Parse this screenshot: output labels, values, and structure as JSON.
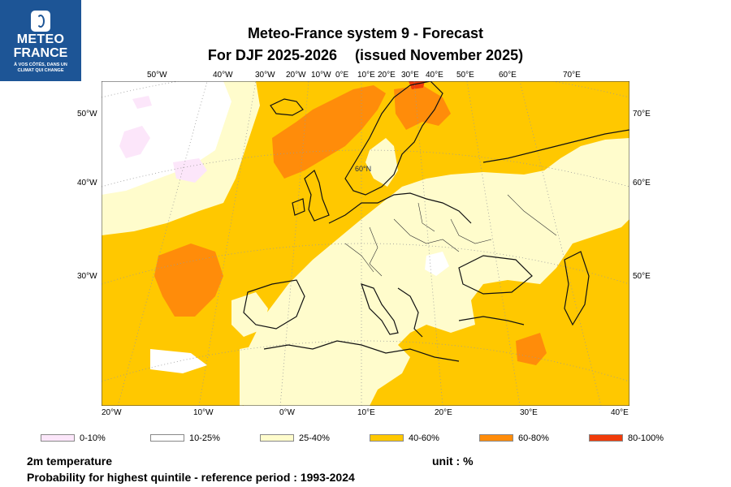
{
  "logo": {
    "line1": "METEO",
    "line2": "FRANCE",
    "tagline": "À VOS CÔTÉS, DANS UN CLIMAT QUI CHANGE"
  },
  "title": {
    "line1": "Meteo-France system 9  -  Forecast",
    "line2a": "For DJF 2025-2026",
    "line2b": "(issued November 2025)"
  },
  "top_lon_labels": [
    "50°W",
    "40°W",
    "30°W",
    "20°W",
    "10°W",
    "0°E",
    "10°E",
    "20°E",
    "30°E",
    "40°E",
    "50°E",
    "60°E",
    "70°E"
  ],
  "bottom_lon_labels": [
    "20°W",
    "10°W",
    "0°W",
    "10°E",
    "20°E",
    "30°E",
    "40°E"
  ],
  "left_lat_labels": [
    "50°W",
    "40°W",
    "30°W"
  ],
  "right_lat_labels": [
    "70°E",
    "60°E",
    "50°E"
  ],
  "inner_label": "60°N",
  "legend": [
    {
      "label": "0-10%",
      "color": "#fce6fa"
    },
    {
      "label": "10-25%",
      "color": "#ffffff"
    },
    {
      "label": "25-40%",
      "color": "#fffccc"
    },
    {
      "label": "40-60%",
      "color": "#ffc800"
    },
    {
      "label": "60-80%",
      "color": "#ff8c0a"
    },
    {
      "label": "80-100%",
      "color": "#f03c0a"
    }
  ],
  "footer": {
    "variable": "2m temperature",
    "unit": "unit : %",
    "description": "Probability for highest quintile - reference period : 1993-2024"
  }
}
